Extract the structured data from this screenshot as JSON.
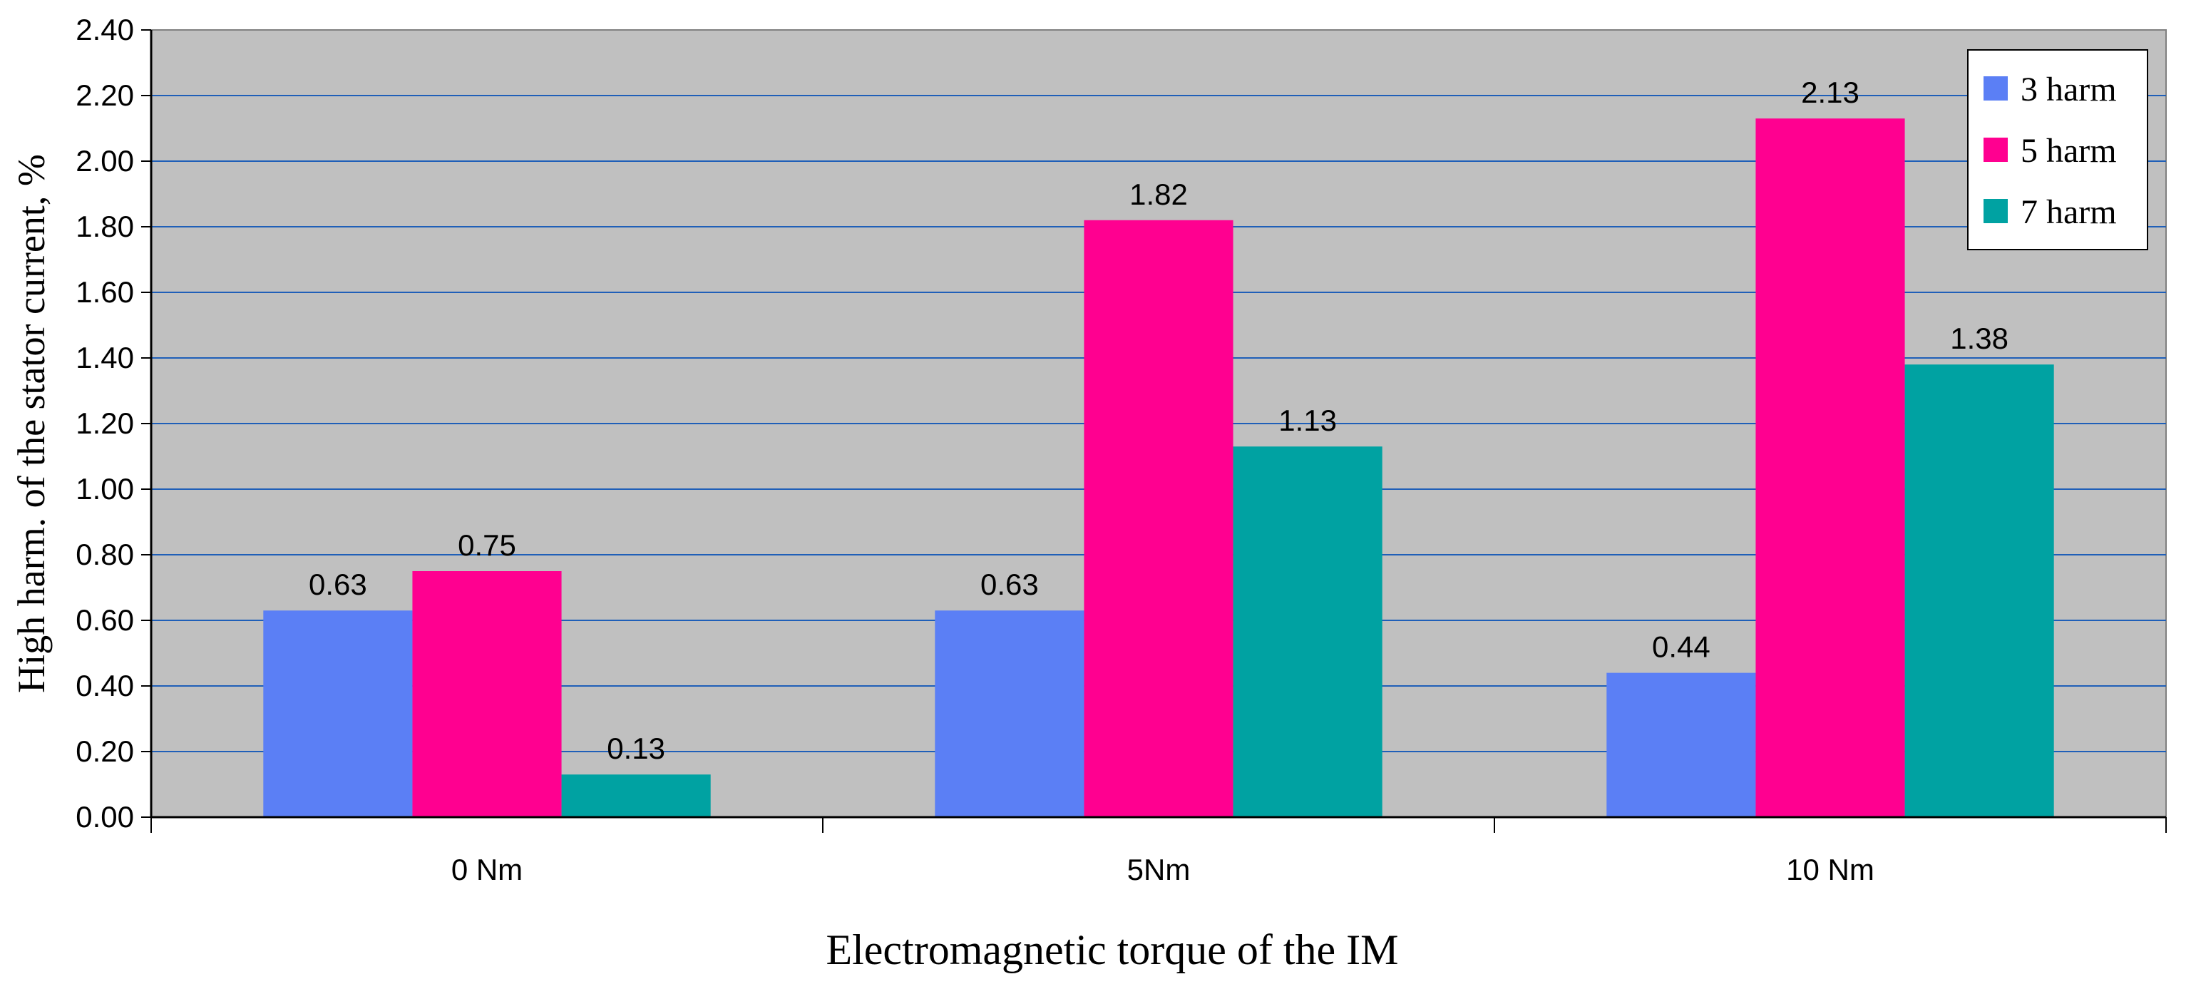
{
  "chart_data": {
    "type": "bar",
    "title": "",
    "xlabel": "Electromagnetic torque of the IM",
    "ylabel": "High harm. of the stator current, %",
    "categories": [
      "0 Nm",
      "5Nm",
      "10 Nm"
    ],
    "ylim": [
      0,
      2.4
    ],
    "yticks": [
      0,
      0.2,
      0.4,
      0.6,
      0.8,
      1.0,
      1.2,
      1.4,
      1.6,
      1.8,
      2.0,
      2.2,
      2.4
    ],
    "ytick_labels": [
      "0.00",
      "0.20",
      "0.40",
      "0.60",
      "0.80",
      "1.00",
      "1.20",
      "1.40",
      "1.60",
      "1.80",
      "2.00",
      "2.20",
      "2.40"
    ],
    "grid": true,
    "legend_position": "top-right",
    "plot_background": "#c0c0c0",
    "series": [
      {
        "name": "3 harm",
        "color": "#5b7ff5",
        "values": [
          0.63,
          0.63,
          0.44
        ],
        "labels": [
          "0.63",
          "0.63",
          "0.44"
        ]
      },
      {
        "name": "5 harm",
        "color": "#ff0090",
        "values": [
          0.75,
          1.82,
          2.13
        ],
        "labels": [
          "0.75",
          "1.82",
          "2.13"
        ]
      },
      {
        "name": "7 harm",
        "color": "#00a2a2",
        "values": [
          0.13,
          1.13,
          1.38
        ],
        "labels": [
          "0.13",
          "1.13",
          "1.38"
        ]
      }
    ]
  }
}
